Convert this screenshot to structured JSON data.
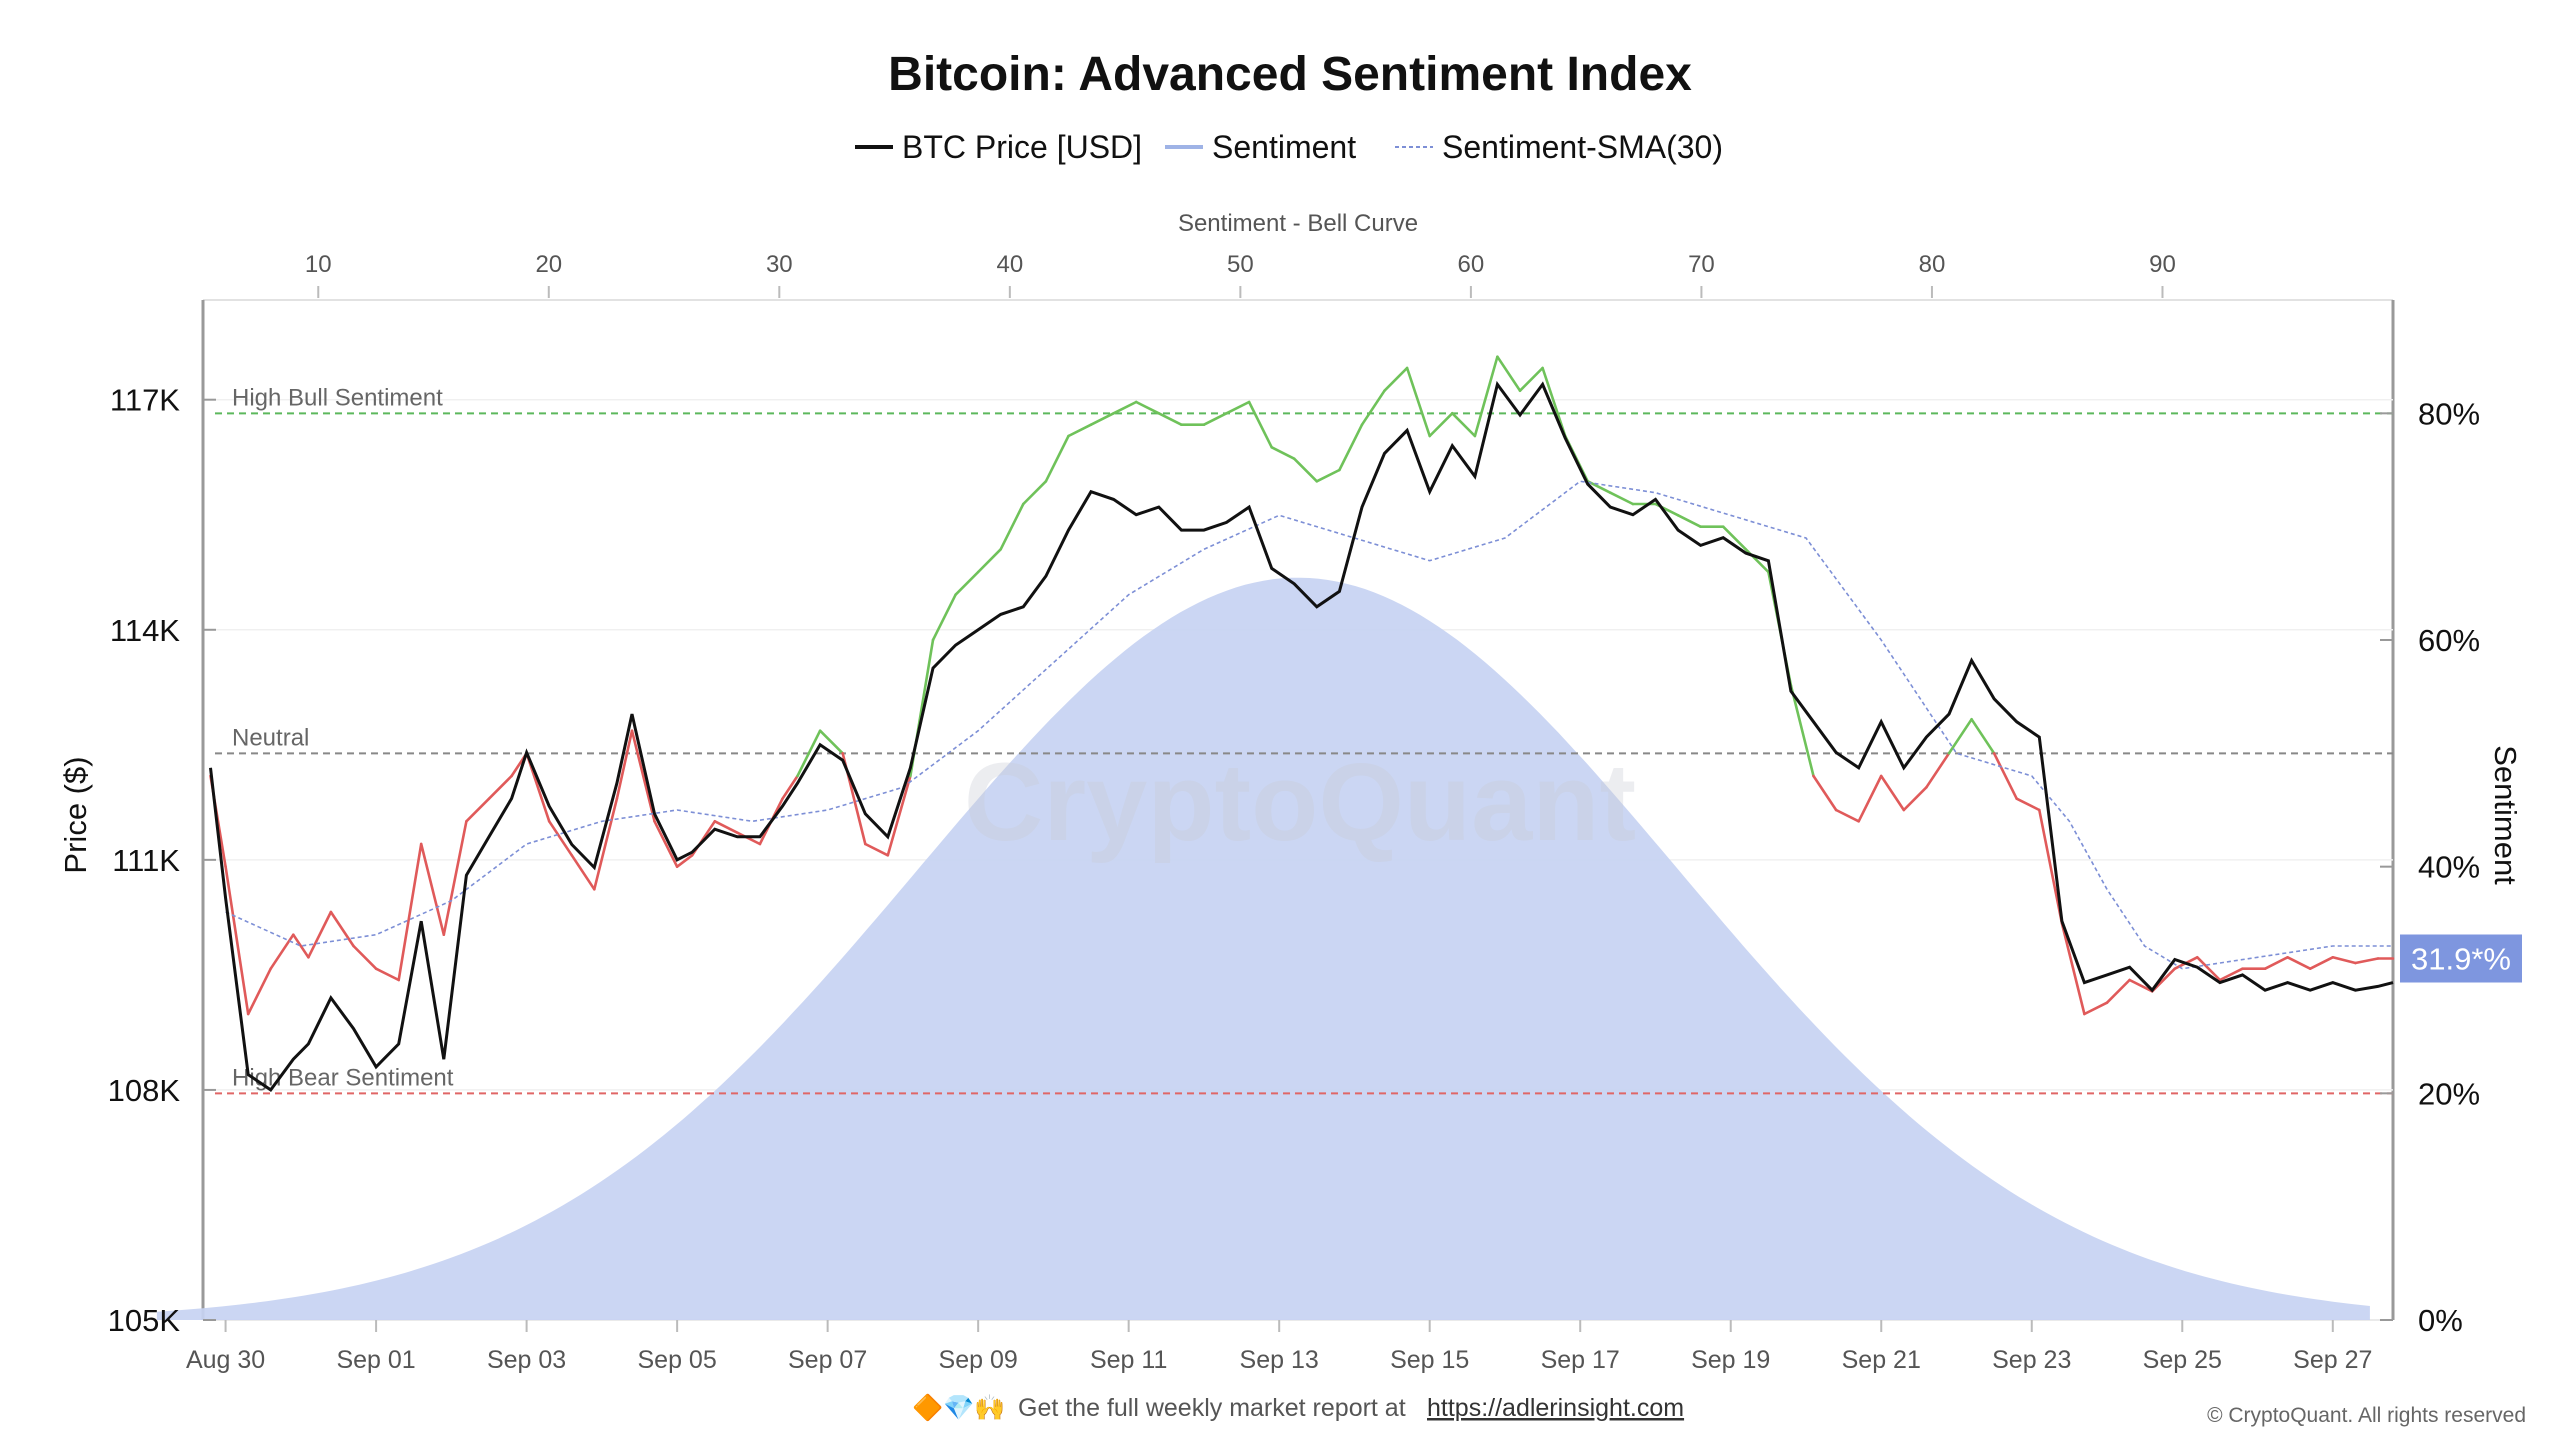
{
  "title": "Bitcoin: Advanced Sentiment Index",
  "legend": [
    {
      "label": "BTC Price [USD]",
      "color": "#111111",
      "style": "solid"
    },
    {
      "label": "Sentiment",
      "color": "#9fb3e6",
      "style": "solid"
    },
    {
      "label": "Sentiment-SMA(30)",
      "color": "#7d8fd6",
      "style": "dashed"
    }
  ],
  "watermark": "CryptoQuant",
  "footer": {
    "emoji": "🔶💎🙌",
    "text": "Get the full weekly market report at",
    "link": "https://adlerinsight.com",
    "copyright": "© CryptoQuant. All rights reserved"
  },
  "chart_data": {
    "type": "line",
    "title": "Bitcoin: Advanced Sentiment Index",
    "top_axis": {
      "label": "Sentiment - Bell Curve",
      "ticks": [
        "10",
        "20",
        "30",
        "40",
        "50",
        "60",
        "70",
        "80",
        "90"
      ],
      "range": [
        5,
        100
      ]
    },
    "left_axis": {
      "label": "Price ($)",
      "ticks": [
        "117K",
        "114K",
        "111K",
        "108K",
        "105K"
      ],
      "tick_values": [
        117000,
        114000,
        111000,
        108000,
        105000
      ],
      "range": [
        105000,
        118300
      ]
    },
    "right_axis": {
      "label": "Sentiment",
      "ticks": [
        "80%",
        "60%",
        "40%",
        "20%",
        "0%"
      ],
      "tick_values": [
        80,
        60,
        40,
        20,
        0
      ],
      "range": [
        0,
        90
      ]
    },
    "x_axis": {
      "ticks": [
        "Aug 30",
        "Sep 01",
        "Sep 03",
        "Sep 05",
        "Sep 07",
        "Sep 09",
        "Sep 11",
        "Sep 13",
        "Sep 15",
        "Sep 17",
        "Sep 19",
        "Sep 21",
        "Sep 23",
        "Sep 25",
        "Sep 27"
      ],
      "tick_days": [
        1,
        3,
        5,
        7,
        9,
        11,
        13,
        15,
        17,
        19,
        21,
        23,
        25,
        27,
        29
      ],
      "range_days": [
        0.7,
        29.8
      ]
    },
    "reference_lines": [
      {
        "label": "High Bull Sentiment",
        "value": 80,
        "color": "#5cb85c"
      },
      {
        "label": "Neutral",
        "value": 50,
        "color": "#888888"
      },
      {
        "label": "High Bear Sentiment",
        "value": 20,
        "color": "#e06666"
      }
    ],
    "current_sentiment_label": "31.9*%",
    "colors": {
      "price": "#111111",
      "bull": "#6fc25a",
      "bear": "#e05a5a",
      "bell": "#c7d2f2",
      "sma": "#7d8fd6",
      "badge": "#7e96df"
    },
    "bell_curve": {
      "mean": 52.5,
      "sd": 16.5,
      "peak_percent": 65.5
    },
    "series": [
      {
        "name": "BTC Price [USD]",
        "axis": "left",
        "x": [
          0.8,
          1.0,
          1.3,
          1.6,
          1.9,
          2.1,
          2.4,
          2.7,
          3.0,
          3.3,
          3.6,
          3.9,
          4.2,
          4.5,
          4.8,
          5.0,
          5.3,
          5.6,
          5.9,
          6.2,
          6.4,
          6.7,
          7.0,
          7.2,
          7.5,
          7.8,
          8.1,
          8.4,
          8.6,
          8.9,
          9.2,
          9.5,
          9.8,
          10.1,
          10.4,
          10.7,
          11.0,
          11.3,
          11.6,
          11.9,
          12.2,
          12.5,
          12.8,
          13.1,
          13.4,
          13.7,
          14.0,
          14.3,
          14.6,
          14.9,
          15.2,
          15.5,
          15.8,
          16.1,
          16.4,
          16.7,
          17.0,
          17.3,
          17.6,
          17.9,
          18.2,
          18.5,
          18.8,
          19.1,
          19.4,
          19.7,
          20.0,
          20.3,
          20.6,
          20.9,
          21.2,
          21.5,
          21.8,
          22.1,
          22.4,
          22.7,
          23.0,
          23.3,
          23.6,
          23.9,
          24.2,
          24.5,
          24.8,
          25.1,
          25.4,
          25.7,
          26.0,
          26.3,
          26.6,
          26.9,
          27.2,
          27.5,
          27.8,
          28.1,
          28.4,
          28.7,
          29.0,
          29.3,
          29.6,
          29.8
        ],
        "values": [
          112200,
          110500,
          108200,
          108000,
          108400,
          108600,
          109200,
          108800,
          108300,
          108600,
          110200,
          108400,
          110800,
          111300,
          111800,
          112400,
          111700,
          111200,
          110900,
          112000,
          112900,
          111600,
          111000,
          111100,
          111400,
          111300,
          111300,
          111700,
          112000,
          112500,
          112300,
          111600,
          111300,
          112200,
          113500,
          113800,
          114000,
          114200,
          114300,
          114700,
          115300,
          115800,
          115700,
          115500,
          115600,
          115300,
          115300,
          115400,
          115600,
          114800,
          114600,
          114300,
          114500,
          115600,
          116300,
          116600,
          115800,
          116400,
          116000,
          117200,
          116800,
          117200,
          116500,
          115900,
          115600,
          115500,
          115700,
          115300,
          115100,
          115200,
          115000,
          114900,
          113200,
          112800,
          112400,
          112200,
          112800,
          112200,
          112600,
          112900,
          113600,
          113100,
          112800,
          112600,
          110200,
          109400,
          109500,
          109600,
          109300,
          109700,
          109600,
          109400,
          109500,
          109300,
          109400,
          109300,
          109400,
          109300,
          109350,
          109400
        ]
      },
      {
        "name": "Sentiment",
        "axis": "right",
        "x": [
          0.8,
          1.0,
          1.3,
          1.6,
          1.9,
          2.1,
          2.4,
          2.7,
          3.0,
          3.3,
          3.6,
          3.9,
          4.2,
          4.5,
          4.8,
          5.0,
          5.3,
          5.6,
          5.9,
          6.2,
          6.4,
          6.7,
          7.0,
          7.2,
          7.5,
          7.8,
          8.1,
          8.4,
          8.6,
          8.9,
          9.2,
          9.5,
          9.8,
          10.1,
          10.4,
          10.7,
          11.0,
          11.3,
          11.6,
          11.9,
          12.2,
          12.5,
          12.8,
          13.1,
          13.4,
          13.7,
          14.0,
          14.3,
          14.6,
          14.9,
          15.2,
          15.5,
          15.8,
          16.1,
          16.4,
          16.7,
          17.0,
          17.3,
          17.6,
          17.9,
          18.2,
          18.5,
          18.8,
          19.1,
          19.4,
          19.7,
          20.0,
          20.3,
          20.6,
          20.9,
          21.2,
          21.5,
          21.8,
          22.1,
          22.4,
          22.7,
          23.0,
          23.3,
          23.6,
          23.9,
          24.2,
          24.5,
          24.8,
          25.1,
          25.4,
          25.7,
          26.0,
          26.3,
          26.6,
          26.9,
          27.2,
          27.5,
          27.8,
          28.1,
          28.4,
          28.7,
          29.0,
          29.3,
          29.6,
          29.8
        ],
        "values": [
          48,
          40,
          27,
          31,
          34,
          32,
          36,
          33,
          31,
          30,
          42,
          34,
          44,
          46,
          48,
          50,
          44,
          41,
          38,
          46,
          52,
          44,
          40,
          41,
          44,
          43,
          42,
          46,
          48,
          52,
          50,
          42,
          41,
          48,
          60,
          64,
          66,
          68,
          72,
          74,
          78,
          79,
          80,
          81,
          80,
          79,
          79,
          80,
          81,
          77,
          76,
          74,
          75,
          79,
          82,
          84,
          78,
          80,
          78,
          85,
          82,
          84,
          78,
          74,
          73,
          72,
          72,
          71,
          70,
          70,
          68,
          66,
          56,
          48,
          45,
          44,
          48,
          45,
          47,
          50,
          53,
          50,
          46,
          45,
          35,
          27,
          28,
          30,
          29,
          31,
          32,
          30,
          31,
          31,
          32,
          31,
          32,
          31.5,
          31.9,
          31.9
        ]
      },
      {
        "name": "Sentiment-SMA(30)",
        "axis": "right",
        "x": [
          1.0,
          2.0,
          3.0,
          4.0,
          5.0,
          6.0,
          7.0,
          8.0,
          9.0,
          10.0,
          11.0,
          12.0,
          13.0,
          14.0,
          15.0,
          16.0,
          17.0,
          18.0,
          19.0,
          20.0,
          21.0,
          22.0,
          23.0,
          24.0,
          25.0,
          25.5,
          26.0,
          26.5,
          27.0,
          28.0,
          29.0,
          29.8
        ],
        "values": [
          36,
          33,
          34,
          37,
          42,
          44,
          45,
          44,
          45,
          47,
          52,
          58,
          64,
          68,
          71,
          69,
          67,
          69,
          74,
          73,
          71,
          69,
          60,
          50,
          48,
          44,
          38,
          33,
          31,
          32,
          33,
          33
        ]
      }
    ]
  }
}
